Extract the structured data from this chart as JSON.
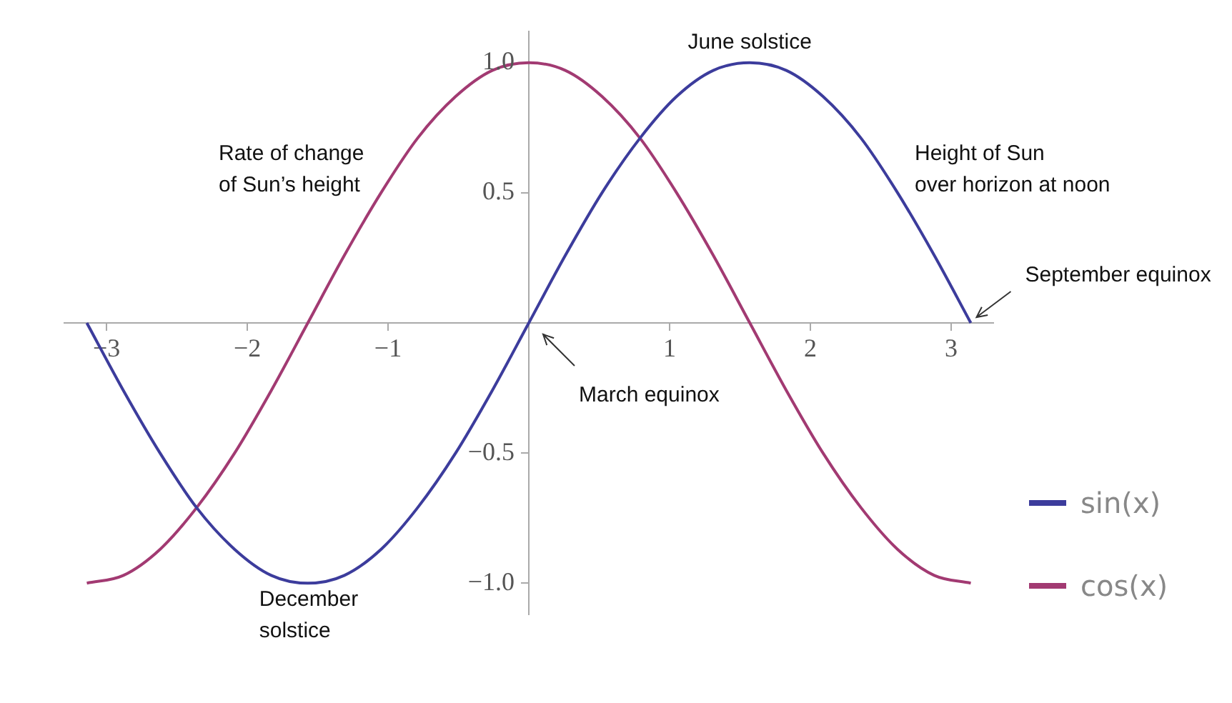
{
  "chart_data": {
    "type": "line",
    "x": [
      -3.14,
      -2.88,
      -2.62,
      -2.36,
      -2.09,
      -1.83,
      -1.57,
      -1.31,
      -1.05,
      -0.79,
      -0.52,
      -0.26,
      0,
      0.26,
      0.52,
      0.79,
      1.05,
      1.31,
      1.57,
      1.83,
      2.09,
      2.36,
      2.62,
      2.88,
      3.14
    ],
    "series": [
      {
        "name": "sin(x)",
        "color": "#3c3c9c",
        "values": [
          0,
          -0.26,
          -0.5,
          -0.71,
          -0.87,
          -0.97,
          -1,
          -0.97,
          -0.87,
          -0.71,
          -0.5,
          -0.26,
          0,
          0.26,
          0.5,
          0.71,
          0.87,
          0.97,
          1,
          0.97,
          0.87,
          0.71,
          0.5,
          0.26,
          0
        ]
      },
      {
        "name": "cos(x)",
        "color": "#a23a72",
        "values": [
          -1,
          -0.97,
          -0.87,
          -0.71,
          -0.5,
          -0.26,
          0,
          0.26,
          0.5,
          0.71,
          0.87,
          0.97,
          1,
          0.97,
          0.87,
          0.71,
          0.5,
          0.26,
          0,
          -0.26,
          -0.5,
          -0.71,
          -0.87,
          -0.97,
          -1
        ]
      }
    ],
    "xlim": [
      -3.3,
      3.3
    ],
    "xticks": [
      {
        "value": -3,
        "label": "−3"
      },
      {
        "value": -2,
        "label": "−2"
      },
      {
        "value": -1,
        "label": "−1"
      },
      1,
      2,
      3
    ],
    "ylim": [
      -1.12,
      1.12
    ],
    "yticks": [
      {
        "value": -1,
        "label": "−1.0"
      },
      {
        "value": -0.5,
        "label": "−0.5"
      },
      0.5,
      {
        "value": 1,
        "label": "1.0"
      }
    ],
    "annotations": [
      "Rate of change\nof Sun’s height",
      "Height of Sun\nover horizon at noon",
      {
        "text": "June solstice",
        "x": 1.57,
        "y": 1
      },
      {
        "text": "December\nsolstice",
        "x": -1.57,
        "y": -1
      },
      "March equinox",
      {
        "text": "September equinox",
        "x": 3.14,
        "y": 0
      }
    ],
    "grid": false,
    "legend": "bottom right",
    "marker": "none",
    "line_style": "solid"
  }
}
